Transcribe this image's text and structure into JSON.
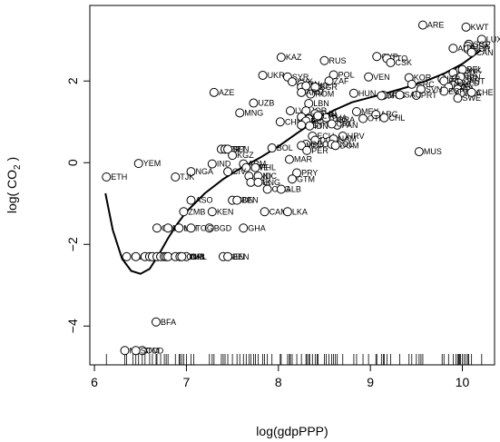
{
  "chart_data": {
    "type": "scatter",
    "title": "",
    "xlabel": "log(gdpPPP)",
    "ylabel_main": "log( CO",
    "ylabel_sub": "2",
    "ylabel_end": " )",
    "xlim": [
      5.95,
      10.35
    ],
    "ylim": [
      -4.95,
      3.85
    ],
    "x_ticks": [
      6,
      7,
      8,
      9,
      10
    ],
    "y_ticks": [
      -4,
      -2,
      0,
      2
    ],
    "x_tick_labels": [
      "6",
      "7",
      "8",
      "9",
      "10"
    ],
    "y_tick_labels": [
      "−4",
      "−2",
      "0",
      "2"
    ],
    "points": [
      {
        "label": "ARE",
        "x": 9.57,
        "y": 3.37
      },
      {
        "label": "KWT",
        "x": 10.04,
        "y": 3.32
      },
      {
        "label": "LUX",
        "x": 10.21,
        "y": 3.02
      },
      {
        "label": "SGP",
        "x": 10.07,
        "y": 2.9
      },
      {
        "label": "USA",
        "x": 10.06,
        "y": 2.85
      },
      {
        "label": "NOR",
        "x": 10.06,
        "y": 2.78
      },
      {
        "label": "AUS",
        "x": 9.9,
        "y": 2.8
      },
      {
        "label": "CAN",
        "x": 10.1,
        "y": 2.7
      },
      {
        "label": "KAZ",
        "x": 8.03,
        "y": 2.58
      },
      {
        "label": "RUS",
        "x": 8.5,
        "y": 2.5
      },
      {
        "label": "SYR",
        "x": 8.1,
        "y": 2.1
      },
      {
        "label": "CYP",
        "x": 9.07,
        "y": 2.6
      },
      {
        "label": "TTO",
        "x": 9.18,
        "y": 2.55
      },
      {
        "label": "CSK",
        "x": 9.22,
        "y": 2.45
      },
      {
        "label": "UKR",
        "x": 7.83,
        "y": 2.14
      },
      {
        "label": "POL",
        "x": 8.6,
        "y": 2.15
      },
      {
        "label": "ZAF",
        "x": 8.55,
        "y": 2.0
      },
      {
        "label": "VEN",
        "x": 8.98,
        "y": 2.1
      },
      {
        "label": "KOR",
        "x": 9.42,
        "y": 2.08
      },
      {
        "label": "DNK",
        "x": 9.97,
        "y": 2.25
      },
      {
        "label": "DEU",
        "x": 9.9,
        "y": 2.2
      },
      {
        "label": "BEL",
        "x": 10.0,
        "y": 2.28
      },
      {
        "label": "GBR",
        "x": 9.93,
        "y": 2.05
      },
      {
        "label": "AUT",
        "x": 10.02,
        "y": 2.0
      },
      {
        "label": "JPN",
        "x": 9.98,
        "y": 2.1
      },
      {
        "label": "ISR",
        "x": 9.78,
        "y": 2.05
      },
      {
        "label": "NLD",
        "x": 9.96,
        "y": 1.95
      },
      {
        "label": "FIN",
        "x": 9.9,
        "y": 1.9
      },
      {
        "label": "IRL",
        "x": 9.8,
        "y": 2.0
      },
      {
        "label": "NZL",
        "x": 9.85,
        "y": 1.85
      },
      {
        "label": "ITA",
        "x": 9.95,
        "y": 1.8
      },
      {
        "label": "FRA",
        "x": 9.98,
        "y": 1.7
      },
      {
        "label": "ESP",
        "x": 9.8,
        "y": 1.75
      },
      {
        "label": "SWE",
        "x": 9.95,
        "y": 1.58
      },
      {
        "label": "CHE",
        "x": 10.1,
        "y": 1.72
      },
      {
        "label": "GRC",
        "x": 9.45,
        "y": 1.92
      },
      {
        "label": "SVN",
        "x": 9.55,
        "y": 1.8
      },
      {
        "label": "PRT",
        "x": 9.5,
        "y": 1.65
      },
      {
        "label": "MYS",
        "x": 9.14,
        "y": 1.65
      },
      {
        "label": "URY",
        "x": 9.12,
        "y": 1.64
      },
      {
        "label": "SAU",
        "x": 9.32,
        "y": 1.66
      },
      {
        "label": "HUN",
        "x": 8.82,
        "y": 1.7
      },
      {
        "label": "AZE",
        "x": 7.3,
        "y": 1.72
      },
      {
        "label": "SVK",
        "x": 8.15,
        "y": 1.98
      },
      {
        "label": "IRN",
        "x": 8.25,
        "y": 1.92
      },
      {
        "label": "TKM",
        "x": 8.25,
        "y": 1.85
      },
      {
        "label": "MKD",
        "x": 8.3,
        "y": 1.88
      },
      {
        "label": "BGR",
        "x": 8.4,
        "y": 1.85
      },
      {
        "label": "ROM",
        "x": 8.35,
        "y": 1.68
      },
      {
        "label": "ARM",
        "x": 8.25,
        "y": 1.72
      },
      {
        "label": "UZB",
        "x": 7.73,
        "y": 1.46
      },
      {
        "label": "LBN",
        "x": 8.33,
        "y": 1.45
      },
      {
        "label": "MNG",
        "x": 7.58,
        "y": 1.22
      },
      {
        "label": "LVA",
        "x": 8.13,
        "y": 1.27
      },
      {
        "label": "JOR",
        "x": 8.3,
        "y": 1.27
      },
      {
        "label": "TUN",
        "x": 8.4,
        "y": 1.2
      },
      {
        "label": "DZA",
        "x": 8.25,
        "y": 1.12
      },
      {
        "label": "GAB",
        "x": 8.33,
        "y": 1.07
      },
      {
        "label": "BIH",
        "x": 8.42,
        "y": 1.12
      },
      {
        "label": "ECU",
        "x": 8.3,
        "y": 1.02
      },
      {
        "label": "MEX",
        "x": 8.85,
        "y": 1.25
      },
      {
        "label": "ARG",
        "x": 9.06,
        "y": 1.18
      },
      {
        "label": "OTH",
        "x": 8.92,
        "y": 1.08
      },
      {
        "label": "CHL",
        "x": 9.15,
        "y": 1.1
      },
      {
        "label": "BRA",
        "x": 8.6,
        "y": 1.05
      },
      {
        "label": "PAN",
        "x": 8.64,
        "y": 0.92
      },
      {
        "label": "CRI",
        "x": 8.58,
        "y": 0.95
      },
      {
        "label": "CHN",
        "x": 8.02,
        "y": 1.0
      },
      {
        "label": "EGY",
        "x": 8.25,
        "y": 0.92
      },
      {
        "label": "IDN",
        "x": 8.34,
        "y": 0.9
      },
      {
        "label": "THA",
        "x": 8.52,
        "y": 1.1
      },
      {
        "label": "LTU",
        "x": 8.43,
        "y": 1.15
      },
      {
        "label": "ECU2",
        "x": 8.37,
        "y": 0.65,
        "text": "ECU"
      },
      {
        "label": "DOM",
        "x": 8.4,
        "y": 0.55
      },
      {
        "label": "HRV",
        "x": 8.7,
        "y": 0.65
      },
      {
        "label": "NAM",
        "x": 8.6,
        "y": 0.58
      },
      {
        "label": "COL",
        "x": 8.58,
        "y": 0.45
      },
      {
        "label": "DOM2",
        "x": 8.62,
        "y": 0.42,
        "text": "DOM"
      },
      {
        "label": "GEO",
        "x": 8.3,
        "y": 0.45
      },
      {
        "label": "MDA",
        "x": 8.25,
        "y": 0.42
      },
      {
        "label": "PER",
        "x": 8.31,
        "y": 0.3
      },
      {
        "label": "MUS",
        "x": 9.53,
        "y": 0.27
      },
      {
        "label": "BOL",
        "x": 7.93,
        "y": 0.36
      },
      {
        "label": "MAR",
        "x": 8.12,
        "y": 0.08
      },
      {
        "label": "PRY",
        "x": 8.2,
        "y": -0.25
      },
      {
        "label": "GTM",
        "x": 8.15,
        "y": -0.4
      },
      {
        "label": "HTI",
        "x": 7.38,
        "y": 0.33
      },
      {
        "label": "ERT",
        "x": 7.42,
        "y": 0.33
      },
      {
        "label": "SEN",
        "x": 7.45,
        "y": 0.33
      },
      {
        "label": "KGZ",
        "x": 7.5,
        "y": 0.18
      },
      {
        "label": "IND",
        "x": 7.28,
        "y": -0.03
      },
      {
        "label": "ARM2",
        "x": 7.62,
        "y": -0.03,
        "text": "ARM"
      },
      {
        "label": "ZWE",
        "x": 7.65,
        "y": -0.12
      },
      {
        "label": "PHL",
        "x": 7.75,
        "y": -0.12
      },
      {
        "label": "NGA",
        "x": 7.05,
        "y": -0.22
      },
      {
        "label": "CIV",
        "x": 7.45,
        "y": -0.22
      },
      {
        "label": "HND",
        "x": 7.68,
        "y": -0.33
      },
      {
        "label": "NIC",
        "x": 7.78,
        "y": -0.33
      },
      {
        "label": "PAK",
        "x": 7.7,
        "y": -0.48
      },
      {
        "label": "ENG",
        "x": 7.78,
        "y": -0.48
      },
      {
        "label": "COG",
        "x": 7.88,
        "y": -0.65
      },
      {
        "label": "ALB",
        "x": 8.03,
        "y": -0.65
      },
      {
        "label": "TJK",
        "x": 6.88,
        "y": -0.35
      },
      {
        "label": "YEM",
        "x": 6.48,
        "y": -0.02
      },
      {
        "label": "ETH",
        "x": 6.13,
        "y": -0.35
      },
      {
        "label": "ASO",
        "x": 7.05,
        "y": -0.92
      },
      {
        "label": "SDN",
        "x": 7.5,
        "y": -0.92
      },
      {
        "label": "BEN",
        "x": 7.55,
        "y": -0.92
      },
      {
        "label": "ZMB",
        "x": 6.97,
        "y": -1.2
      },
      {
        "label": "KEN",
        "x": 7.28,
        "y": -1.2
      },
      {
        "label": "CAM",
        "x": 7.85,
        "y": -1.2
      },
      {
        "label": "LKA",
        "x": 8.1,
        "y": -1.2
      },
      {
        "label": "GHA",
        "x": 7.62,
        "y": -1.6
      },
      {
        "label": "GIN",
        "x": 6.68,
        "y": -1.6
      },
      {
        "label": "NPL",
        "x": 6.8,
        "y": -1.6
      },
      {
        "label": "MLI",
        "x": 6.92,
        "y": -1.6
      },
      {
        "label": "BGD",
        "x": 7.25,
        "y": -1.6
      },
      {
        "label": "TOG",
        "x": 7.05,
        "y": -1.6
      },
      {
        "label": "MWI",
        "x": 6.35,
        "y": -2.3
      },
      {
        "label": "RWA",
        "x": 6.45,
        "y": -2.3
      },
      {
        "label": "MDG",
        "x": 6.55,
        "y": -2.3
      },
      {
        "label": "NER",
        "x": 6.6,
        "y": -2.3
      },
      {
        "label": "SLE",
        "x": 6.63,
        "y": -2.3
      },
      {
        "label": "BDI",
        "x": 6.68,
        "y": -2.3
      },
      {
        "label": "TZA",
        "x": 6.72,
        "y": -2.3
      },
      {
        "label": "MOZ",
        "x": 6.76,
        "y": -2.3
      },
      {
        "label": "CAF",
        "x": 6.78,
        "y": -2.3
      },
      {
        "label": "UGA",
        "x": 6.8,
        "y": -2.3
      },
      {
        "label": "LAO",
        "x": 6.88,
        "y": -2.3
      },
      {
        "label": "COM",
        "x": 6.93,
        "y": -2.3
      },
      {
        "label": "NPL2",
        "x": 7.0,
        "y": -2.3,
        "text": "NPL"
      },
      {
        "label": "GMB",
        "x": 6.95,
        "y": -2.3
      },
      {
        "label": "SEN2",
        "x": 7.4,
        "y": -2.3,
        "text": "SEN"
      },
      {
        "label": "BEN2",
        "x": 7.45,
        "y": -2.3,
        "text": "BEN"
      },
      {
        "label": "BFA",
        "x": 6.67,
        "y": -3.9
      },
      {
        "label": "MDG2",
        "x": 6.33,
        "y": -4.6,
        "text": "MDG"
      },
      {
        "label": "TCD",
        "x": 6.52,
        "y": -4.6
      },
      {
        "label": "SOM",
        "x": 6.45,
        "y": -4.6
      }
    ],
    "smooth_curve": {
      "x": [
        6.12,
        6.2,
        6.3,
        6.4,
        6.5,
        6.6,
        6.7,
        6.8,
        6.9,
        7.0,
        7.2,
        7.4,
        7.6,
        7.8,
        8.0,
        8.2,
        8.4,
        8.6,
        8.8,
        9.0,
        9.2,
        9.4,
        9.6,
        9.8,
        10.0,
        10.2
      ],
      "y": [
        -0.75,
        -1.65,
        -2.35,
        -2.65,
        -2.72,
        -2.6,
        -2.25,
        -1.85,
        -1.5,
        -1.2,
        -0.75,
        -0.4,
        -0.12,
        0.12,
        0.4,
        0.72,
        1.02,
        1.28,
        1.48,
        1.6,
        1.72,
        1.85,
        2.0,
        2.18,
        2.42,
        2.75
      ]
    },
    "rug_x": [
      6.13,
      6.33,
      6.35,
      6.42,
      6.45,
      6.48,
      6.52,
      6.55,
      6.6,
      6.63,
      6.67,
      6.68,
      6.72,
      6.76,
      6.78,
      6.8,
      6.88,
      6.92,
      6.93,
      6.95,
      6.97,
      7.0,
      7.05,
      7.08,
      7.25,
      7.28,
      7.3,
      7.38,
      7.4,
      7.42,
      7.45,
      7.5,
      7.55,
      7.58,
      7.62,
      7.65,
      7.68,
      7.7,
      7.73,
      7.75,
      7.78,
      7.83,
      7.85,
      7.88,
      7.93,
      8.02,
      8.03,
      8.1,
      8.12,
      8.13,
      8.15,
      8.2,
      8.25,
      8.3,
      8.31,
      8.33,
      8.34,
      8.37,
      8.4,
      8.42,
      8.43,
      8.5,
      8.52,
      8.55,
      8.58,
      8.6,
      8.62,
      8.64,
      8.7,
      8.82,
      8.85,
      8.92,
      8.98,
      9.06,
      9.07,
      9.12,
      9.14,
      9.15,
      9.18,
      9.22,
      9.32,
      9.42,
      9.45,
      9.5,
      9.53,
      9.55,
      9.57,
      9.78,
      9.8,
      9.85,
      9.9,
      9.93,
      9.95,
      9.96,
      9.97,
      9.98,
      10.0,
      10.02,
      10.04,
      10.06,
      10.07,
      10.1,
      10.21
    ]
  }
}
